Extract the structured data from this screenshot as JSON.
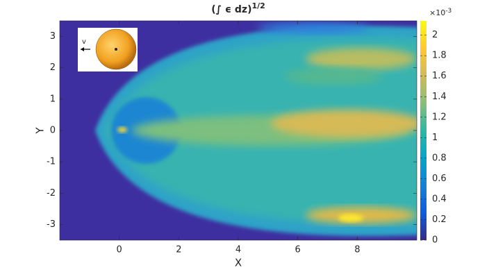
{
  "chart_data": {
    "type": "heatmap",
    "title": "(∫ ϵ dz)",
    "title_exponent": "1/2",
    "x_label": "X",
    "y_label": "Y",
    "xlim": [
      -2,
      10
    ],
    "xticks": [
      0,
      2,
      4,
      6,
      8
    ],
    "ylim": [
      -3.5,
      3.5
    ],
    "yticks": [
      -3,
      -2,
      -1,
      0,
      1,
      2,
      3
    ],
    "colorbar": {
      "clim": [
        0,
        2.14
      ],
      "ticks": [
        0,
        0.2,
        0.4,
        0.6,
        0.8,
        1,
        1.2,
        1.4,
        1.6,
        1.8,
        2
      ],
      "scale_base": "×10",
      "scale_exponent": "-3",
      "colors": [
        "#352a87",
        "#0f5cdd",
        "#1481d6",
        "#06a4ca",
        "#2eb7a4",
        "#87bf77",
        "#d1bb59",
        "#fec832",
        "#f9fb0e"
      ]
    },
    "inset_label": "v"
  }
}
